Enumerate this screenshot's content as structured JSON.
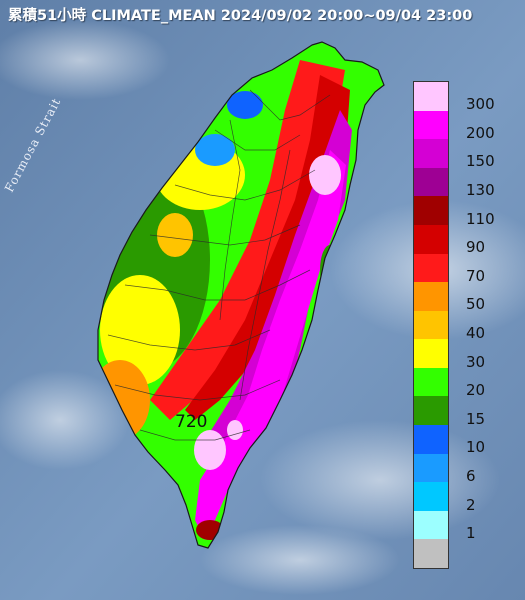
{
  "title": "累積51小時 CLIMATE_MEAN 2024/09/02 20:00~09/04 23:00",
  "strait_label": "Formosa Strait",
  "max_value_label": "720",
  "legend": {
    "levels": [
      {
        "label": "300",
        "color": "#ffc6ff"
      },
      {
        "label": "200",
        "color": "#ff00ff"
      },
      {
        "label": "150",
        "color": "#d400d4"
      },
      {
        "label": "130",
        "color": "#9e0094"
      },
      {
        "label": "110",
        "color": "#a00000"
      },
      {
        "label": "90",
        "color": "#d40000"
      },
      {
        "label": "70",
        "color": "#ff1a1a"
      },
      {
        "label": "50",
        "color": "#ff9500"
      },
      {
        "label": "40",
        "color": "#ffc400"
      },
      {
        "label": "30",
        "color": "#ffff00"
      },
      {
        "label": "20",
        "color": "#33ff00"
      },
      {
        "label": "15",
        "color": "#2a9a00"
      },
      {
        "label": "10",
        "color": "#0f63ff"
      },
      {
        "label": "6",
        "color": "#1a9bff"
      },
      {
        "label": "2",
        "color": "#00c8ff"
      },
      {
        "label": "1",
        "color": "#9cffff"
      },
      {
        "label": "",
        "color": "#c0c0c0"
      }
    ]
  },
  "colors": {
    "sea": "#6e8fb6",
    "label_text": "#111111",
    "title_text": "#ffffff"
  }
}
